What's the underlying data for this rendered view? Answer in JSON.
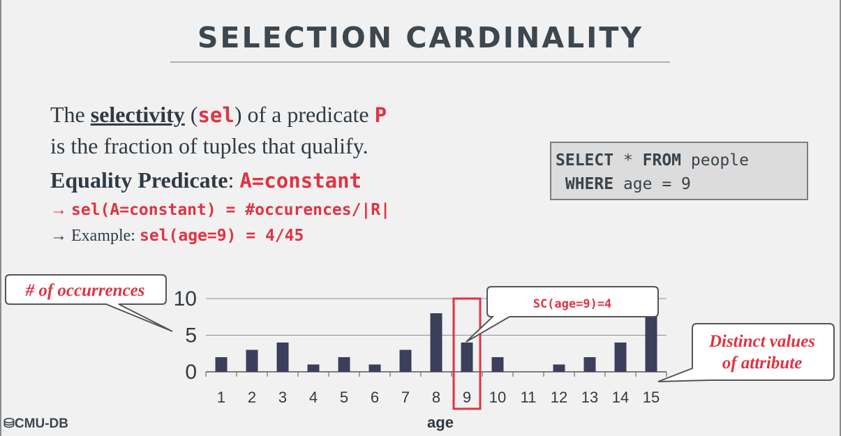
{
  "slide": {
    "title": "SELECTION CARDINALITY",
    "definition": {
      "line1_pre": "The ",
      "term": "selectivity",
      "paren_open": " (",
      "term_code": "sel",
      "paren_close": ") of a predicate ",
      "predicate": "P",
      "line2": "is the fraction of tuples that qualify."
    },
    "equality": {
      "label": "Equality Predicate",
      "colon": ": ",
      "expr": "A=constant"
    },
    "bullets": {
      "arrow": "→",
      "formula": "sel(A=constant) = #occurences/|R|",
      "example_label": "Example: ",
      "example_code": "sel(age=9) = 4/45"
    },
    "sql": {
      "kw_select": "SELECT",
      "star": " * ",
      "kw_from": "FROM",
      "table": " people",
      "kw_where": "WHERE",
      "cond": " age = 9"
    },
    "logo": "CMU-DB"
  },
  "colors": {
    "bar": "#3b3f5c",
    "accent_red": "#e03342",
    "text_dark": "#2f3a44"
  },
  "chart_data": {
    "type": "bar",
    "categories": [
      "1",
      "2",
      "3",
      "4",
      "5",
      "6",
      "7",
      "8",
      "9",
      "10",
      "11",
      "12",
      "13",
      "14",
      "15"
    ],
    "values": [
      2,
      3,
      4,
      1,
      2,
      1,
      3,
      8,
      4,
      2,
      0,
      1,
      2,
      4,
      8
    ],
    "xlabel": "age",
    "ylabel": "",
    "ylim": [
      0,
      10
    ],
    "yticks": [
      "0",
      "5",
      "10"
    ],
    "grid": true,
    "highlight_category": "9",
    "annotations": {
      "occurrences": "# of occurrences",
      "sc": "SC(age=9)=4",
      "distinct_line1": "Distinct values",
      "distinct_line2": "of attribute"
    }
  }
}
